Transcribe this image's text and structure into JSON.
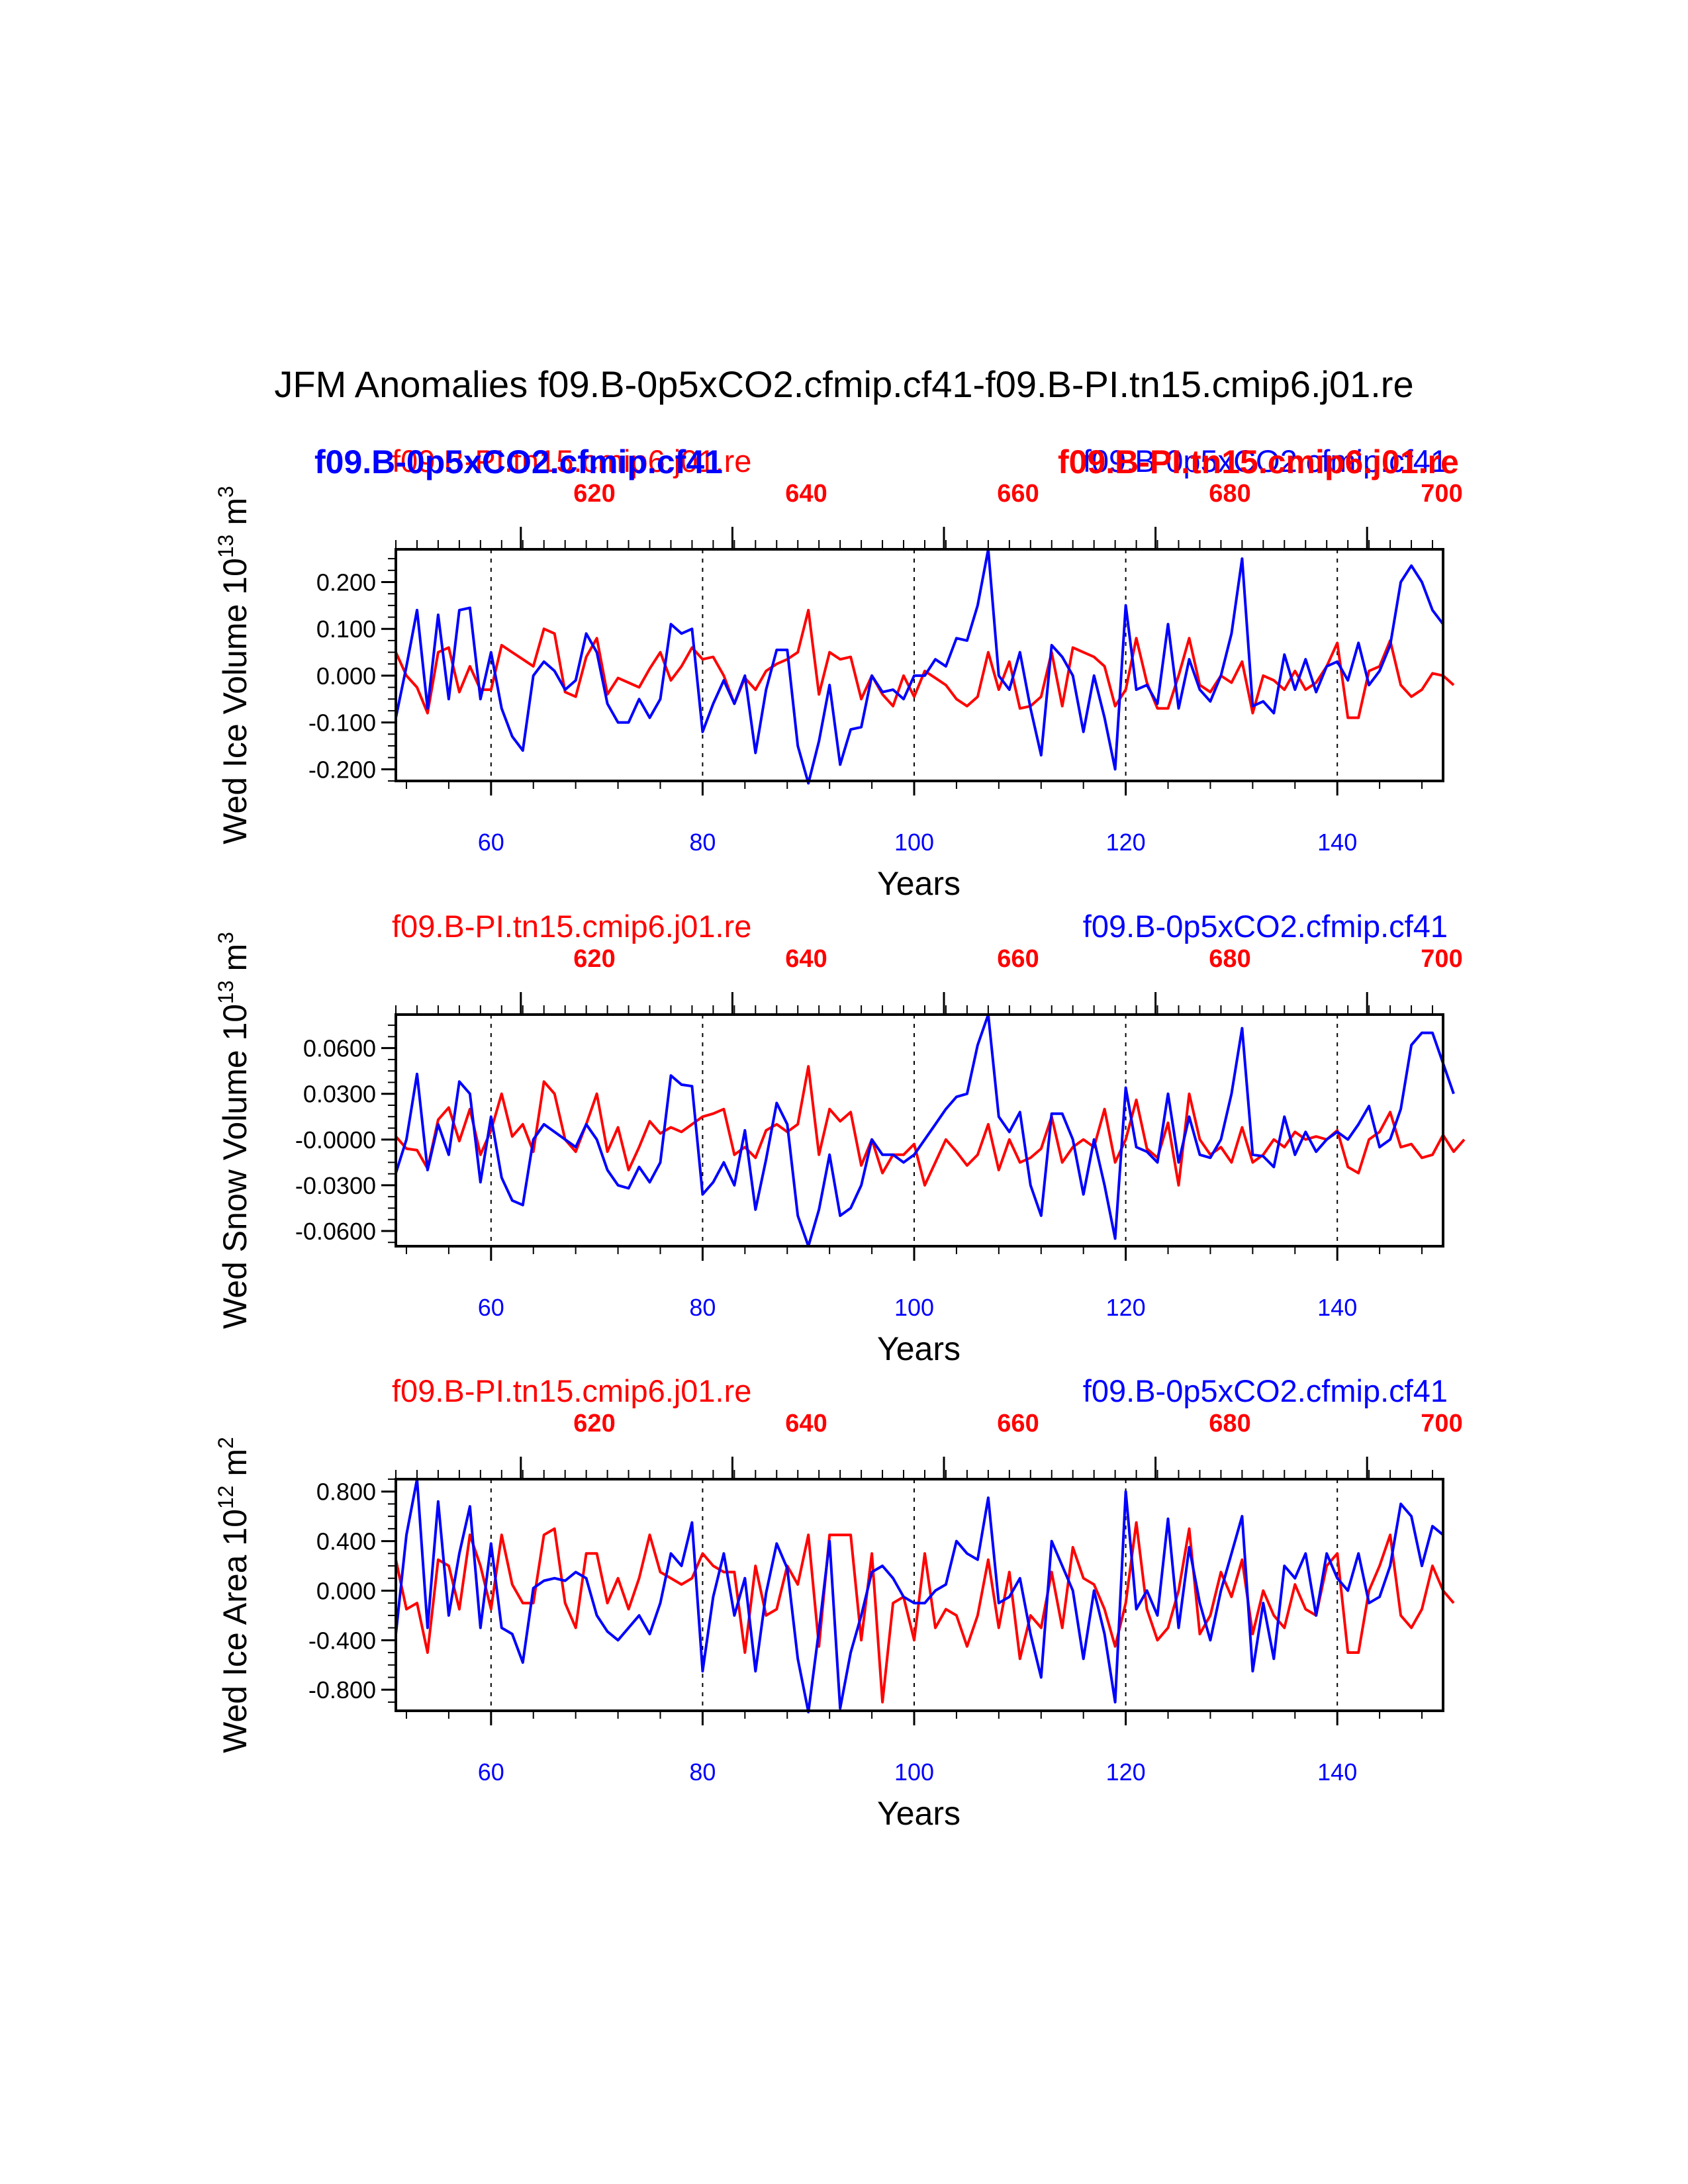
{
  "colors": {
    "blue": "#0000ff",
    "red": "#ff0000",
    "black": "#000000"
  },
  "suptitle": "JFM Anomalies f09.B-0p5xCO2.cfmip.cf41-f09.B-PI.tn15.cmip6.j01.re",
  "overlay_labels": {
    "blue_bold": "f09.B-0p5xCO2.cfmip.cf41",
    "red_bold": "f09.B-PI.tn15.cmip6.j01.re"
  },
  "chart_data": [
    {
      "type": "line",
      "title_left": "f09.B-PI.tn15.cmip6.j01.re",
      "title_right": "f09.B-0p5xCO2.cfmip.cf41",
      "ylabel": "Wed Ice Volume 10",
      "ylabel_exp": "13",
      "ylabel_unit": " m",
      "ylabel_unit_exp": "3",
      "xlabel": "Years",
      "xlim": [
        51,
        150
      ],
      "ylim": [
        -0.225,
        0.27
      ],
      "yticks": [
        0.2,
        0.1,
        0.0,
        -0.1,
        -0.2
      ],
      "ytick_labels": [
        "0.200",
        "0.100",
        "0.000",
        "-0.100",
        "-0.200"
      ],
      "xticks_bottom": [
        60,
        80,
        100,
        120,
        140
      ],
      "xtick_labels_bottom": [
        "60",
        "80",
        "100",
        "120",
        "140"
      ],
      "xticks_top_pos": [
        60,
        80,
        100,
        120,
        140
      ],
      "xtick_labels_top": [
        "620",
        "640",
        "660",
        "680",
        "700"
      ],
      "vlines": [
        60,
        80,
        100,
        120,
        140
      ],
      "x_start": 51,
      "series": [
        {
          "name": "f09.B-0p5xCO2.cfmip.cf41",
          "color": "#0000ff",
          "values": [
            -0.09,
            0.02,
            0.14,
            -0.07,
            0.13,
            -0.05,
            0.14,
            0.145,
            -0.05,
            0.05,
            -0.07,
            -0.13,
            -0.16,
            0.0,
            0.03,
            0.01,
            -0.03,
            -0.01,
            0.09,
            0.05,
            -0.06,
            -0.1,
            -0.1,
            -0.05,
            -0.09,
            -0.05,
            0.11,
            0.09,
            0.1,
            -0.12,
            -0.06,
            -0.01,
            -0.06,
            0.0,
            -0.165,
            -0.03,
            0.055,
            0.055,
            -0.15,
            -0.23,
            -0.14,
            -0.02,
            -0.19,
            -0.115,
            -0.11,
            0.0,
            -0.035,
            -0.03,
            -0.05,
            0.0,
            0.0,
            0.035,
            0.02,
            0.08,
            0.075,
            0.15,
            0.27,
            0.0,
            -0.03,
            0.05,
            -0.07,
            -0.17,
            0.065,
            0.04,
            0.0,
            -0.12,
            0.0,
            -0.09,
            -0.2,
            0.15,
            -0.03,
            -0.02,
            -0.06,
            0.11,
            -0.07,
            0.035,
            -0.03,
            -0.055,
            0.0,
            0.09,
            0.25,
            -0.065,
            -0.055,
            -0.08,
            0.045,
            -0.03,
            0.035,
            -0.035,
            0.02,
            0.03,
            -0.01,
            0.07,
            -0.02,
            0.01,
            0.065,
            0.2,
            0.235,
            0.2,
            0.14,
            0.11
          ]
        },
        {
          "name": "f09.B-PI.tn15.cmip6.j01.re",
          "color": "#ff0000",
          "values": [
            0.05,
            0.0,
            -0.025,
            -0.08,
            0.05,
            0.06,
            -0.035,
            0.02,
            -0.03,
            -0.03,
            0.065,
            0.05,
            0.035,
            0.02,
            0.1,
            0.09,
            -0.035,
            -0.045,
            0.04,
            0.08,
            -0.04,
            -0.005,
            -0.015,
            -0.025,
            0.015,
            0.05,
            -0.01,
            0.02,
            0.06,
            0.035,
            0.04,
            0.0,
            -0.06,
            -0.005,
            -0.03,
            0.01,
            0.025,
            0.035,
            0.05,
            0.14,
            -0.04,
            0.05,
            0.035,
            0.04,
            -0.05,
            0.0,
            -0.04,
            -0.065,
            0.0,
            -0.045,
            0.01,
            -0.005,
            -0.02,
            -0.05,
            -0.065,
            -0.045,
            0.05,
            -0.03,
            0.03,
            -0.07,
            -0.065,
            -0.045,
            0.05,
            -0.065,
            0.06,
            0.05,
            0.04,
            0.02,
            -0.065,
            -0.03,
            0.08,
            -0.015,
            -0.07,
            -0.07,
            0.0,
            0.08,
            -0.02,
            -0.035,
            0.0,
            -0.015,
            0.03,
            -0.08,
            0.0,
            -0.01,
            -0.03,
            0.01,
            -0.03,
            -0.015,
            0.02,
            0.07,
            -0.09,
            -0.09,
            0.01,
            0.02,
            0.075,
            -0.02,
            -0.045,
            -0.03,
            0.005,
            0.0,
            -0.02
          ]
        }
      ]
    },
    {
      "type": "line",
      "title_left": "f09.B-PI.tn15.cmip6.j01.re",
      "title_right": "f09.B-0p5xCO2.cfmip.cf41",
      "ylabel": "Wed Snow Volume 10",
      "ylabel_exp": "13",
      "ylabel_unit": " m",
      "ylabel_unit_exp": "3",
      "xlabel": "Years",
      "xlim": [
        51,
        150
      ],
      "ylim": [
        -0.07,
        0.082
      ],
      "yticks": [
        0.06,
        0.03,
        0.0,
        -0.03,
        -0.06
      ],
      "ytick_labels": [
        "0.0600",
        "0.0300",
        "-0.0000",
        "-0.0300",
        "-0.0600"
      ],
      "xticks_bottom": [
        60,
        80,
        100,
        120,
        140
      ],
      "xtick_labels_bottom": [
        "60",
        "80",
        "100",
        "120",
        "140"
      ],
      "xticks_top_pos": [
        60,
        80,
        100,
        120,
        140
      ],
      "xtick_labels_top": [
        "620",
        "640",
        "660",
        "680",
        "700"
      ],
      "vlines": [
        60,
        80,
        100,
        120,
        140
      ],
      "x_start": 51,
      "series": [
        {
          "name": "f09.B-0p5xCO2.cfmip.cf41",
          "color": "#0000ff",
          "values": [
            -0.022,
            0.0,
            0.043,
            -0.02,
            0.01,
            -0.01,
            0.038,
            0.03,
            -0.028,
            0.015,
            -0.025,
            -0.04,
            -0.043,
            0.0,
            0.01,
            0.005,
            0.0,
            -0.005,
            0.01,
            0.0,
            -0.02,
            -0.03,
            -0.032,
            -0.018,
            -0.028,
            -0.015,
            0.042,
            0.036,
            0.035,
            -0.036,
            -0.028,
            -0.015,
            -0.03,
            0.006,
            -0.046,
            -0.013,
            0.024,
            0.01,
            -0.05,
            -0.07,
            -0.046,
            -0.01,
            -0.05,
            -0.045,
            -0.03,
            0.0,
            -0.01,
            -0.01,
            -0.015,
            -0.01,
            0.0,
            0.01,
            0.02,
            0.028,
            0.03,
            0.062,
            0.082,
            0.015,
            0.005,
            0.018,
            -0.03,
            -0.05,
            0.017,
            0.017,
            0.0,
            -0.036,
            0.0,
            -0.03,
            -0.065,
            0.034,
            -0.005,
            -0.008,
            -0.015,
            0.03,
            -0.015,
            0.015,
            -0.01,
            -0.012,
            0.0,
            0.03,
            0.073,
            -0.01,
            -0.011,
            -0.018,
            0.015,
            -0.01,
            0.005,
            -0.008,
            0.0,
            0.005,
            0.0,
            0.01,
            0.022,
            -0.005,
            0.0,
            0.02,
            0.062,
            0.07,
            0.07,
            0.05,
            0.03
          ]
        },
        {
          "name": "f09.B-PI.tn15.cmip6.j01.re",
          "color": "#ff0000",
          "values": [
            0.002,
            -0.006,
            -0.007,
            -0.019,
            0.013,
            0.021,
            -0.001,
            0.02,
            -0.01,
            0.006,
            0.03,
            0.002,
            0.01,
            -0.008,
            0.038,
            0.03,
            0.0,
            -0.008,
            0.01,
            0.03,
            -0.008,
            0.008,
            -0.02,
            -0.005,
            0.012,
            0.004,
            0.008,
            0.005,
            0.01,
            0.015,
            0.017,
            0.02,
            -0.01,
            -0.005,
            -0.012,
            0.006,
            0.01,
            0.005,
            0.01,
            0.048,
            -0.01,
            0.02,
            0.012,
            0.018,
            -0.017,
            0.0,
            -0.022,
            -0.01,
            -0.01,
            -0.003,
            -0.03,
            -0.015,
            0.0,
            -0.008,
            -0.017,
            -0.01,
            0.01,
            -0.02,
            0.0,
            -0.015,
            -0.012,
            -0.006,
            0.015,
            -0.015,
            -0.005,
            0.0,
            -0.005,
            0.02,
            -0.015,
            0.0,
            0.026,
            -0.006,
            -0.012,
            0.011,
            -0.03,
            0.03,
            0.0,
            -0.01,
            -0.005,
            -0.015,
            0.008,
            -0.015,
            -0.01,
            0.0,
            -0.005,
            0.005,
            0.0,
            0.002,
            0.0,
            0.006,
            -0.018,
            -0.022,
            0.0,
            0.005,
            0.018,
            -0.005,
            -0.003,
            -0.012,
            -0.01,
            0.003,
            -0.008,
            0.0
          ]
        }
      ]
    },
    {
      "type": "line",
      "title_left": "f09.B-PI.tn15.cmip6.j01.re",
      "title_right": "f09.B-0p5xCO2.cfmip.cf41",
      "ylabel": "Wed Ice Area 10",
      "ylabel_exp": "12",
      "ylabel_unit": " m",
      "ylabel_unit_exp": "2",
      "xlabel": "Years",
      "xlim": [
        51,
        150
      ],
      "ylim": [
        -0.97,
        0.9
      ],
      "yticks": [
        0.8,
        0.4,
        0.0,
        -0.4,
        -0.8
      ],
      "ytick_labels": [
        "0.800",
        "0.400",
        "0.000",
        "-0.400",
        "-0.800"
      ],
      "xticks_bottom": [
        60,
        80,
        100,
        120,
        140
      ],
      "xtick_labels_bottom": [
        "60",
        "80",
        "100",
        "120",
        "140"
      ],
      "xticks_top_pos": [
        60,
        80,
        100,
        120,
        140
      ],
      "xtick_labels_top": [
        "620",
        "640",
        "660",
        "680",
        "700"
      ],
      "vlines": [
        60,
        80,
        100,
        120,
        140
      ],
      "x_start": 51,
      "series": [
        {
          "name": "f09.B-0p5xCO2.cfmip.cf41",
          "color": "#0000ff",
          "values": [
            -0.35,
            0.45,
            0.9,
            -0.3,
            0.72,
            -0.2,
            0.3,
            0.68,
            -0.3,
            0.38,
            -0.3,
            -0.35,
            -0.58,
            0.02,
            0.08,
            0.1,
            0.08,
            0.15,
            0.1,
            -0.2,
            -0.33,
            -0.4,
            -0.3,
            -0.2,
            -0.35,
            -0.1,
            0.3,
            0.2,
            0.55,
            -0.65,
            -0.05,
            0.3,
            -0.2,
            0.1,
            -0.65,
            -0.02,
            0.38,
            0.18,
            -0.55,
            -0.98,
            -0.32,
            0.4,
            -0.95,
            -0.5,
            -0.2,
            0.15,
            0.2,
            0.1,
            -0.05,
            -0.1,
            -0.1,
            0.0,
            0.05,
            0.4,
            0.3,
            0.25,
            0.75,
            -0.1,
            -0.05,
            0.1,
            -0.35,
            -0.7,
            0.4,
            0.2,
            0.0,
            -0.55,
            0.0,
            -0.35,
            -0.9,
            0.8,
            -0.15,
            0.0,
            -0.2,
            0.58,
            -0.3,
            0.35,
            -0.1,
            -0.4,
            0.0,
            0.3,
            0.6,
            -0.65,
            -0.1,
            -0.55,
            0.2,
            0.1,
            0.3,
            -0.2,
            0.3,
            0.1,
            0.0,
            0.3,
            -0.1,
            -0.05,
            0.2,
            0.7,
            0.6,
            0.2,
            0.52,
            0.45
          ]
        },
        {
          "name": "f09.B-PI.tn15.cmip6.j01.re",
          "color": "#ff0000",
          "values": [
            0.25,
            -0.15,
            -0.1,
            -0.5,
            0.25,
            0.2,
            -0.15,
            0.45,
            0.2,
            -0.15,
            0.45,
            0.05,
            -0.1,
            -0.1,
            0.45,
            0.5,
            -0.1,
            -0.3,
            0.3,
            0.3,
            -0.1,
            0.1,
            -0.15,
            0.1,
            0.45,
            0.15,
            0.1,
            0.05,
            0.1,
            0.3,
            0.2,
            0.15,
            0.15,
            -0.5,
            0.2,
            -0.2,
            -0.15,
            0.2,
            0.05,
            0.45,
            -0.45,
            0.45,
            0.45,
            0.45,
            -0.4,
            0.3,
            -0.9,
            -0.1,
            -0.05,
            -0.4,
            0.3,
            -0.3,
            -0.15,
            -0.2,
            -0.45,
            -0.2,
            0.25,
            -0.3,
            0.15,
            -0.55,
            -0.2,
            -0.3,
            0.15,
            -0.3,
            0.35,
            0.1,
            0.05,
            -0.15,
            -0.45,
            -0.1,
            0.55,
            -0.15,
            -0.4,
            -0.3,
            0.0,
            0.5,
            -0.35,
            -0.2,
            0.15,
            -0.05,
            0.25,
            -0.35,
            0.0,
            -0.2,
            -0.3,
            0.05,
            -0.15,
            -0.2,
            0.2,
            0.3,
            -0.5,
            -0.5,
            0.0,
            0.2,
            0.45,
            -0.2,
            -0.3,
            -0.15,
            0.2,
            0.0,
            -0.1
          ]
        }
      ]
    }
  ]
}
